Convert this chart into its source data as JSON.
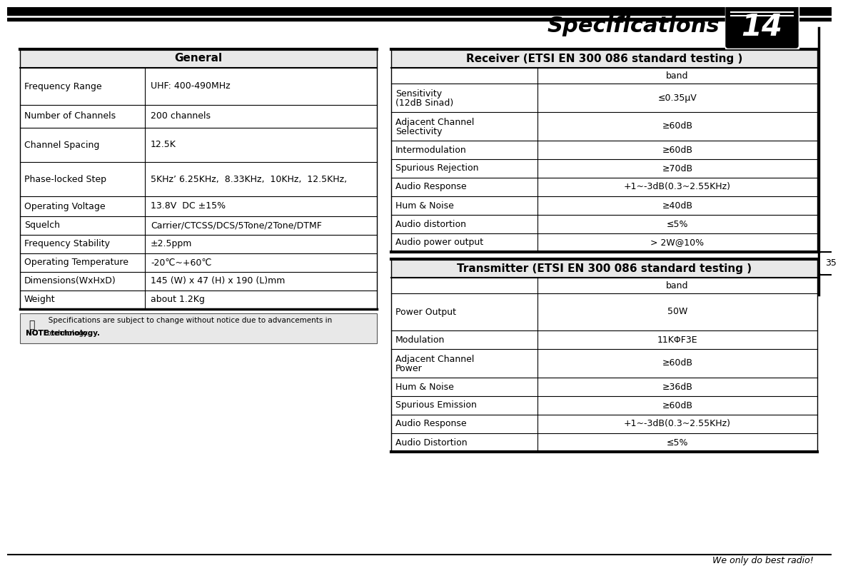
{
  "title": "Specifications",
  "page_num": "14",
  "page_num2": "35",
  "bg_color": "#ffffff",
  "general_title": "General",
  "general_rows": [
    [
      "Frequency Range",
      "UHF: 400-490MHz",
      52
    ],
    [
      "Number of Channels",
      "200 channels",
      32
    ],
    [
      "Channel Spacing",
      "12.5K",
      48
    ],
    [
      "Phase-locked Step",
      "5KHz’ 6.25KHz,  8.33KHz,  10KHz,  12.5KHz,",
      48
    ],
    [
      "Operating Voltage",
      "13.8V  DC ±15%",
      28
    ],
    [
      "Squelch",
      "Carrier/CTCSS/DCS/5Tone/2Tone/DTMF",
      26
    ],
    [
      "Frequency Stability",
      "±2.5ppm",
      26
    ],
    [
      "Operating Temperature",
      "-20℃~+60℃",
      26
    ],
    [
      "Dimensions(WxHxD)",
      "145 (W) x 47 (H) x 190 (L)mm",
      26
    ],
    [
      "Weight",
      "about 1.2Kg",
      26
    ]
  ],
  "note_line1": "   Specifications are subject to change without notice due to advancements in",
  "note_line2": "NOTE technology.",
  "receiver_title": "Receiver (ETSI EN 300 086 standard testing )",
  "receiver_sub": "band",
  "receiver_rows": [
    [
      "Sensitivity\n(12dB Sinad)",
      "≤0.35μV",
      40
    ],
    [
      "Adjacent Channel\nSelectivity",
      "≥60dB",
      40
    ],
    [
      "Intermodulation",
      "≥60dB",
      26
    ],
    [
      "Spurious Rejection",
      "≥70dB",
      26
    ],
    [
      "Audio Response",
      "+1~-3dB(0.3~2.55KHz)",
      26
    ],
    [
      "Hum & Noise",
      "≥40dB",
      26
    ],
    [
      "Audio distortion",
      "≤5%",
      26
    ],
    [
      "Audio power output",
      "> 2W@10%",
      26
    ]
  ],
  "transmitter_title": "Transmitter (ETSI EN 300 086 standard testing )",
  "transmitter_sub": "band",
  "transmitter_rows": [
    [
      "Power Output",
      "50W",
      52
    ],
    [
      "Modulation",
      "11KΦF3E",
      26
    ],
    [
      "Adjacent Channel\nPower",
      "≥60dB",
      40
    ],
    [
      "Hum & Noise",
      "≥36dB",
      26
    ],
    [
      "Spurious Emission",
      "≥60dB",
      26
    ],
    [
      "Audio Response",
      "+1~-3dB(0.3~2.55KHz)",
      26
    ],
    [
      "Audio Distortion",
      "≤5%",
      26
    ]
  ],
  "slogan": "We only do best radio!"
}
